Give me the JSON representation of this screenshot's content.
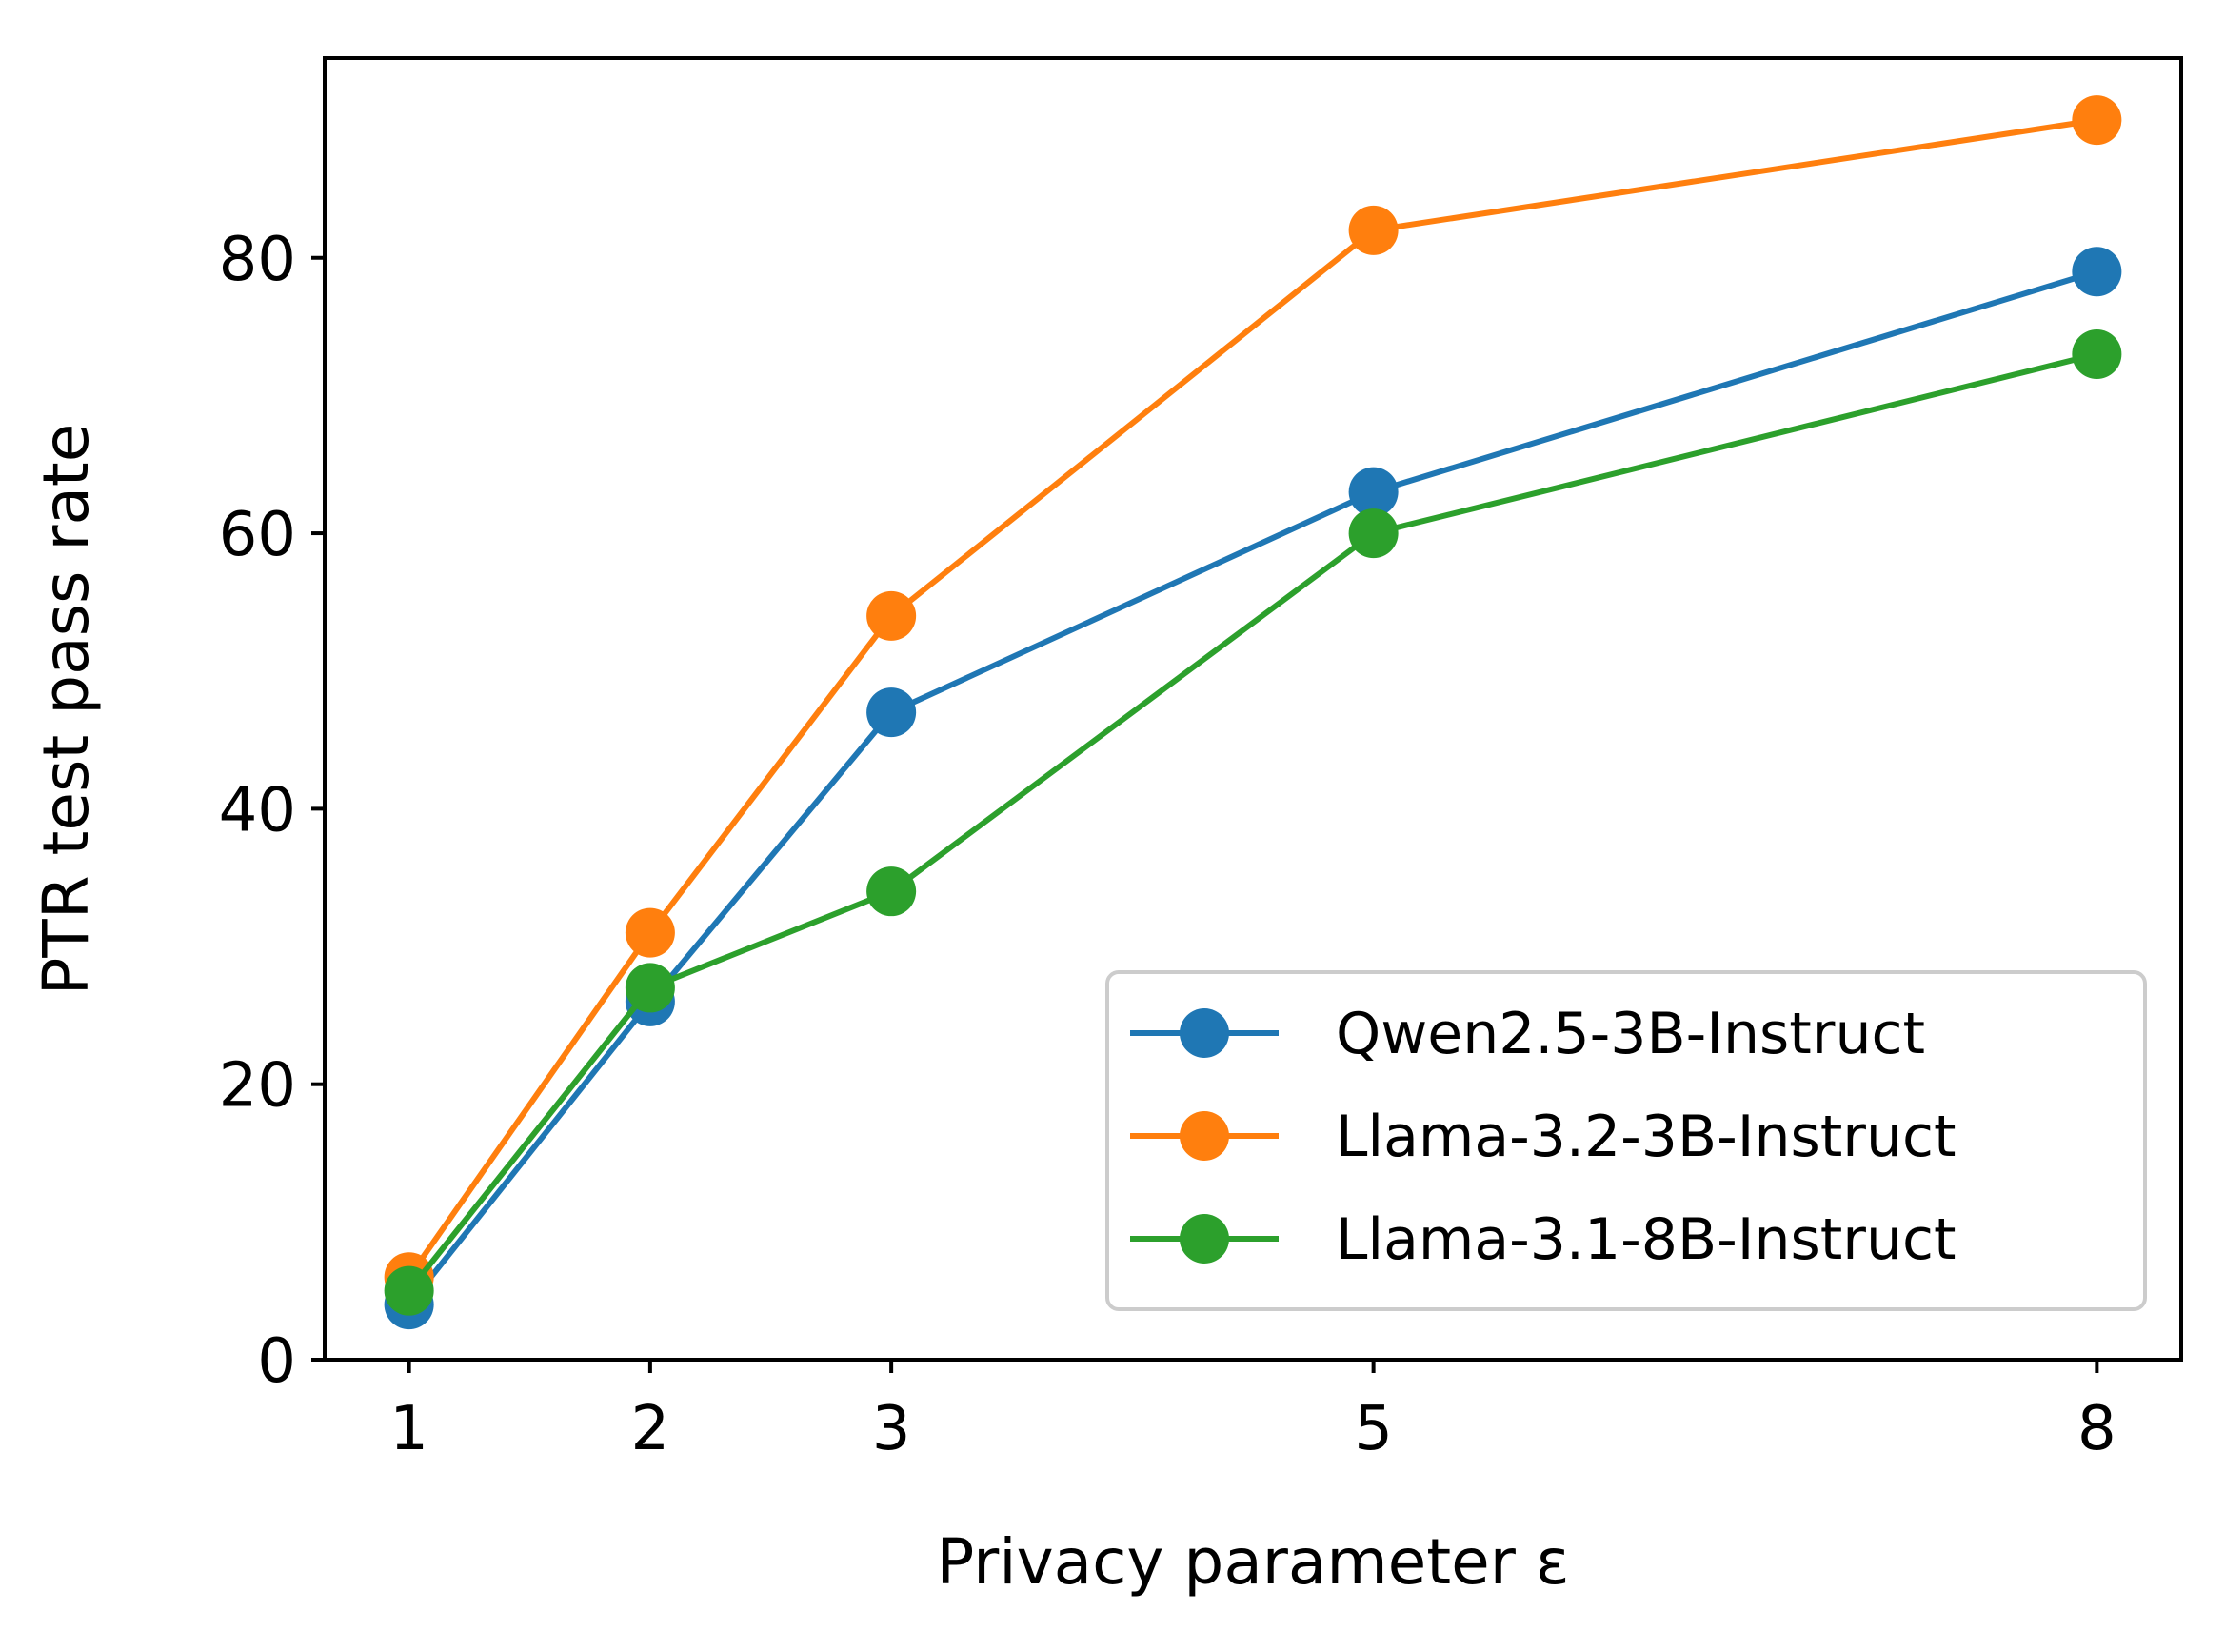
{
  "chart_data": {
    "type": "line",
    "title": "",
    "xlabel": "Privacy parameter ε",
    "ylabel": "PTR test pass rate",
    "x": [
      1,
      2,
      3,
      5,
      8
    ],
    "xticks": [
      "1",
      "2",
      "3",
      "5",
      "8"
    ],
    "yticks": [
      "0",
      "20",
      "40",
      "60",
      "80"
    ],
    "ytick_values": [
      0,
      20,
      40,
      60,
      80
    ],
    "xlim": [
      0.65,
      8.35
    ],
    "ylim": [
      0,
      94.5
    ],
    "grid": false,
    "legend_position": "lower-right",
    "series": [
      {
        "name": "Qwen2.5-3B-Instruct",
        "color": "#1f77b4",
        "values": [
          4,
          26,
          47,
          63,
          79
        ]
      },
      {
        "name": "Llama-3.2-3B-Instruct",
        "color": "#ff7f0e",
        "values": [
          6,
          31,
          54,
          82,
          90
        ]
      },
      {
        "name": "Llama-3.1-8B-Instruct",
        "color": "#2ca02c",
        "values": [
          5,
          27,
          34,
          60,
          73
        ]
      }
    ]
  }
}
